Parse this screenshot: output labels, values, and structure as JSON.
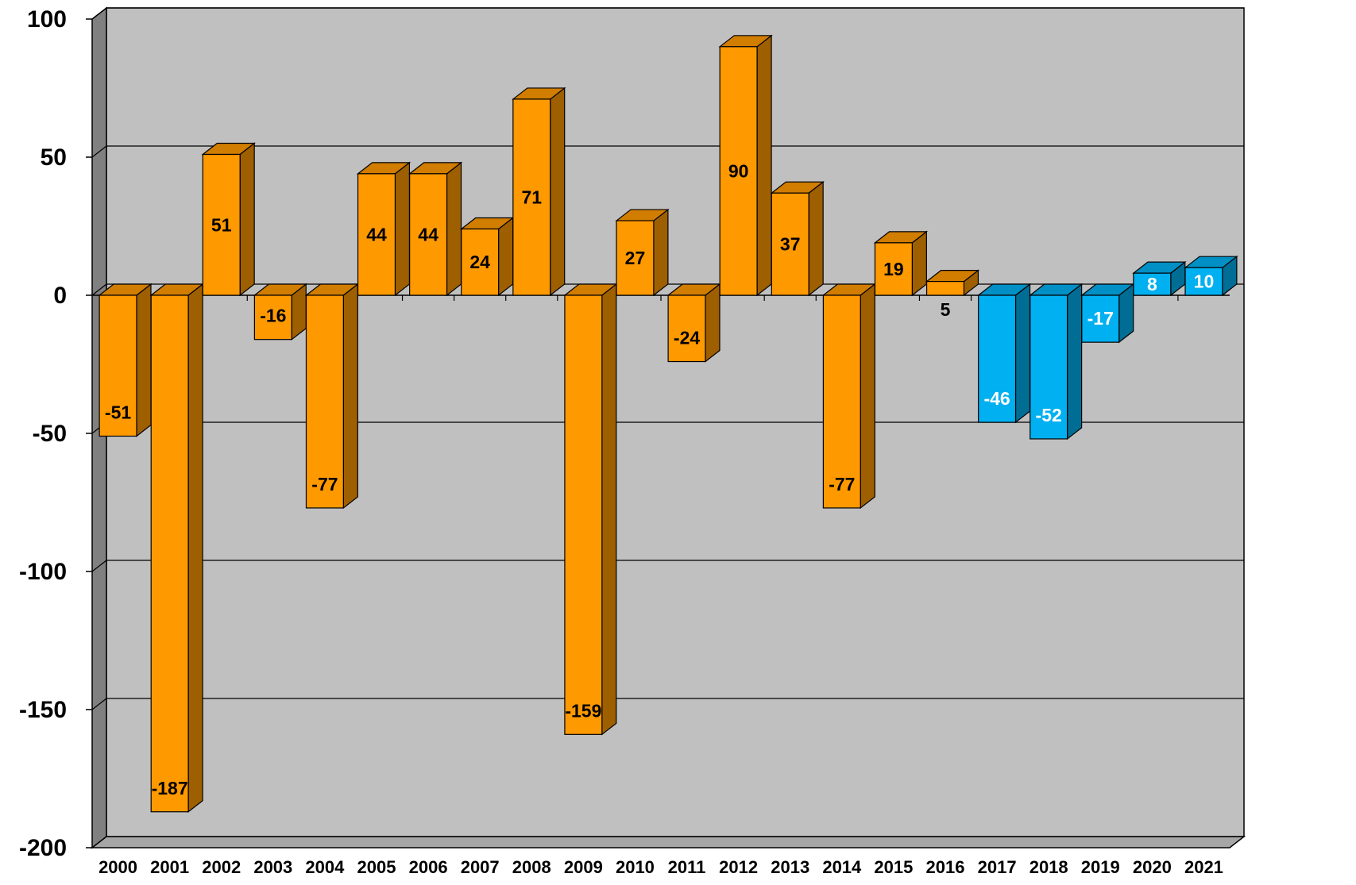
{
  "chart_data": {
    "type": "bar",
    "title": "",
    "xlabel": "",
    "ylabel": "",
    "ylim": [
      -200,
      100
    ],
    "yticks": [
      100,
      50,
      0,
      -50,
      -100,
      -150,
      -200
    ],
    "ytick_labels": [
      "100",
      "50",
      "0",
      "-50",
      "-100",
      "-150",
      "-200"
    ],
    "grid": true,
    "style": "3d",
    "categories": [
      "2000",
      "2001",
      "2002",
      "2003",
      "2004",
      "2005",
      "2006",
      "2007",
      "2008",
      "2009",
      "2010",
      "2011",
      "2012",
      "2013",
      "2014",
      "2015",
      "2016",
      "2017",
      "2018",
      "2019",
      "2020",
      "2021"
    ],
    "values": [
      -51,
      -187,
      51,
      -16,
      -77,
      44,
      44,
      24,
      71,
      -159,
      27,
      -24,
      90,
      37,
      -77,
      19,
      5,
      -46,
      -52,
      -17,
      8,
      10
    ],
    "data_labels": [
      "-51",
      "-187",
      "51",
      "-16",
      "-77",
      "44",
      "44",
      "24",
      "71",
      "-159",
      "27",
      "-24",
      "90",
      "37",
      "-77",
      "19",
      "5",
      "-46",
      "-52",
      "-17",
      "8",
      "10"
    ],
    "bar_colors": [
      "#ff9900",
      "#ff9900",
      "#ff9900",
      "#ff9900",
      "#ff9900",
      "#ff9900",
      "#ff9900",
      "#ff9900",
      "#ff9900",
      "#ff9900",
      "#ff9900",
      "#ff9900",
      "#ff9900",
      "#ff9900",
      "#ff9900",
      "#ff9900",
      "#ff9900",
      "#00b0f0",
      "#00b0f0",
      "#00b0f0",
      "#00b0f0",
      "#00b0f0"
    ],
    "label_colors": [
      "#000000",
      "#000000",
      "#000000",
      "#000000",
      "#000000",
      "#000000",
      "#000000",
      "#000000",
      "#000000",
      "#000000",
      "#000000",
      "#000000",
      "#000000",
      "#000000",
      "#000000",
      "#000000",
      "#000000",
      "#ffffff",
      "#ffffff",
      "#ffffff",
      "#ffffff",
      "#ffffff"
    ],
    "colors": {
      "plot_background": "#c0c0c0",
      "wall_side": "#808080",
      "floor": "#a6a6a6",
      "gridline": "#000000"
    }
  }
}
